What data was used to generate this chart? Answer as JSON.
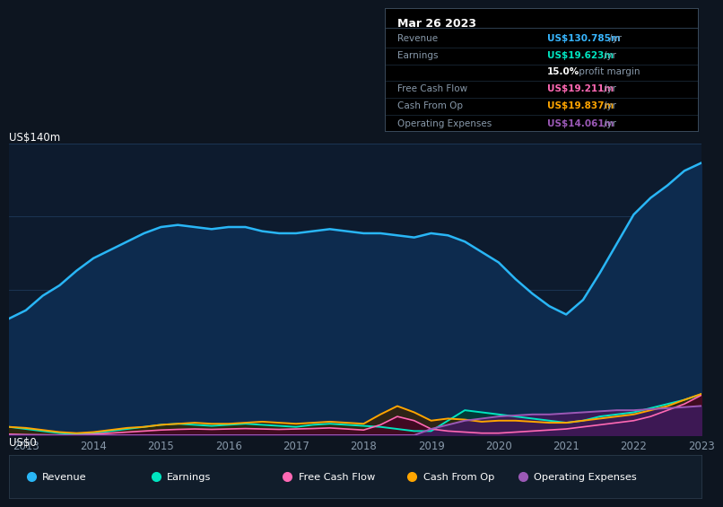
{
  "background_color": "#0d1520",
  "plot_bg_color": "#0d1b2e",
  "ylabel_top": "US$140m",
  "ylabel_zero": "US$0",
  "x_years": [
    2012.75,
    2013.0,
    2013.25,
    2013.5,
    2013.75,
    2014.0,
    2014.25,
    2014.5,
    2014.75,
    2015.0,
    2015.25,
    2015.5,
    2015.75,
    2016.0,
    2016.25,
    2016.5,
    2016.75,
    2017.0,
    2017.25,
    2017.5,
    2017.75,
    2018.0,
    2018.25,
    2018.5,
    2018.75,
    2019.0,
    2019.25,
    2019.5,
    2019.75,
    2020.0,
    2020.25,
    2020.5,
    2020.75,
    2021.0,
    2021.25,
    2021.5,
    2021.75,
    2022.0,
    2022.25,
    2022.5,
    2022.75,
    2023.0
  ],
  "revenue": [
    56,
    60,
    67,
    72,
    79,
    85,
    89,
    93,
    97,
    100,
    101,
    100,
    99,
    100,
    100,
    98,
    97,
    97,
    98,
    99,
    98,
    97,
    97,
    96,
    95,
    97,
    96,
    93,
    88,
    83,
    75,
    68,
    62,
    58,
    65,
    78,
    92,
    106,
    114,
    120,
    127,
    130.785
  ],
  "earnings": [
    4,
    3,
    2,
    1,
    0.5,
    1,
    2,
    3,
    4,
    5,
    5.5,
    5,
    4.5,
    5,
    5.5,
    5,
    4.5,
    4,
    5,
    5.5,
    5,
    4.5,
    4,
    3,
    2,
    2,
    7,
    12,
    11,
    10,
    9,
    8,
    7,
    6,
    7,
    9,
    10,
    11,
    13,
    15,
    17,
    19.623
  ],
  "free_cash_flow": [
    0.5,
    0.3,
    0.2,
    0.1,
    0.1,
    0.5,
    1.0,
    1.5,
    2,
    2.5,
    2.8,
    3,
    2.8,
    3,
    3.2,
    3,
    2.8,
    3,
    3.2,
    3.5,
    3,
    2.5,
    5,
    9,
    7,
    3,
    2,
    1.5,
    1,
    1,
    1.5,
    2,
    2.5,
    3,
    4,
    5,
    6,
    7,
    9,
    12,
    15,
    19.211
  ],
  "cash_from_op": [
    4,
    3.5,
    2.5,
    1.5,
    1,
    1.5,
    2.5,
    3.5,
    4,
    5,
    5.5,
    6,
    5.5,
    5.5,
    6,
    6.5,
    6,
    5.5,
    6,
    6.5,
    6,
    5.5,
    10,
    14,
    11,
    7,
    8,
    7.5,
    6.5,
    7,
    7,
    6.5,
    6,
    6,
    7,
    8,
    9,
    10,
    12,
    14,
    17,
    19.837
  ],
  "op_expenses": [
    0,
    0,
    0,
    0,
    0,
    0,
    0,
    0,
    0,
    0,
    0,
    0,
    0,
    0,
    0,
    0,
    0,
    0,
    0,
    0,
    0,
    0,
    0,
    0,
    0,
    3,
    5,
    7,
    8,
    9,
    9.5,
    10,
    10,
    10.5,
    11,
    11.5,
    12,
    12,
    12.5,
    13,
    13.5,
    14.061
  ],
  "revenue_color": "#29b6f6",
  "revenue_fill": "#0d2b4e",
  "earnings_color": "#00e5c0",
  "earnings_fill": "#003d35",
  "fcf_color": "#ff69b4",
  "fcf_fill": "#4a0028",
  "cashop_color": "#ffa500",
  "cashop_fill": "#3d2200",
  "opex_color": "#9b59b6",
  "opex_fill": "#3d1a5a",
  "grid_color": "#1e3a5a",
  "tick_color": "#8899aa",
  "x_ticks": [
    2013,
    2014,
    2015,
    2016,
    2017,
    2018,
    2019,
    2020,
    2021,
    2022,
    2023
  ],
  "ylim": [
    0,
    140
  ],
  "info_date": "Mar 26 2023",
  "info_rows": [
    {
      "label": "Revenue",
      "value": "US$130.785m",
      "unit": "/yr",
      "color": "#38b6ff"
    },
    {
      "label": "Earnings",
      "value": "US$19.623m",
      "unit": "/yr",
      "color": "#00e5c0"
    },
    {
      "label": "",
      "value": "15.0%",
      "unit": " profit margin",
      "color": "#ffffff"
    },
    {
      "label": "Free Cash Flow",
      "value": "US$19.211m",
      "unit": "/yr",
      "color": "#ff69b4"
    },
    {
      "label": "Cash From Op",
      "value": "US$19.837m",
      "unit": "/yr",
      "color": "#ffa500"
    },
    {
      "label": "Operating Expenses",
      "value": "US$14.061m",
      "unit": "/yr",
      "color": "#9b59b6"
    }
  ],
  "legend_items": [
    {
      "label": "Revenue",
      "color": "#29b6f6"
    },
    {
      "label": "Earnings",
      "color": "#00e5c0"
    },
    {
      "label": "Free Cash Flow",
      "color": "#ff69b4"
    },
    {
      "label": "Cash From Op",
      "color": "#ffa500"
    },
    {
      "label": "Operating Expenses",
      "color": "#9b59b6"
    }
  ]
}
